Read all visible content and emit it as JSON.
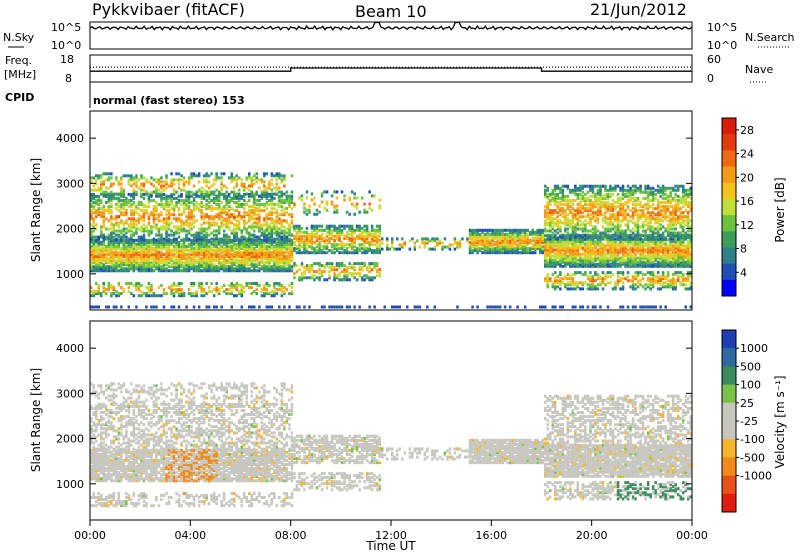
{
  "header": {
    "station": "Pykkvibaer (fitACF)",
    "beam": "Beam 10",
    "date": "21/Jun/2012"
  },
  "top_panels": {
    "nsky_label": "N.Sky",
    "nsky_ticks": [
      "10^5",
      "10^0"
    ],
    "nsearch_label": "N.Search",
    "nsearch_ticks": [
      "10^5",
      "10^0"
    ],
    "freq_label": "Freq.",
    "freq_unit": "[MHz]",
    "freq_ticks": [
      "18",
      "8"
    ],
    "nave_label": "Nave",
    "nave_ticks": [
      "60",
      "0"
    ],
    "cpid_label": "CPID",
    "cpid_text": "normal (fast stereo) 153"
  },
  "colors": {
    "power": [
      "#0000ff",
      "#1f4fb4",
      "#2e7f88",
      "#3c9e5a",
      "#6cc23c",
      "#bfe03a",
      "#f7c21e",
      "#f39a17",
      "#ee6a12",
      "#e33a0e",
      "#d81b0b"
    ],
    "velocity": [
      "#1f3fb0",
      "#2e6aa0",
      "#3c8a5e",
      "#7ac24a",
      "#c7c7c0",
      "#c7c7c0",
      "#f5b52a",
      "#f18a1a",
      "#e6521a",
      "#e01c10"
    ]
  },
  "chart_data": [
    {
      "type": "line",
      "title": "N.Sky / N.Search",
      "ylabel": "N.Sky",
      "y2label": "N.Search",
      "yticks": [
        "10^0",
        "10^5"
      ],
      "note": "noise levels remain near top of axis with spikes near 11:30 and 14:45 UT",
      "series": [
        {
          "name": "N.Sky",
          "x": [
            "00:00",
            "11:20",
            "11:35",
            "14:35",
            "14:50",
            "24:00"
          ],
          "values": [
            0.8,
            0.8,
            1.0,
            0.8,
            1.0,
            0.8
          ]
        }
      ]
    },
    {
      "type": "line",
      "title": "Freq / Nave",
      "ylabel": "Freq. [MHz]",
      "y2label": "Nave",
      "ylim": [
        8,
        18
      ],
      "y2lim": [
        0,
        60
      ],
      "series": [
        {
          "name": "Freq. [MHz]",
          "x": [
            "00:00",
            "08:00",
            "08:00",
            "18:00",
            "18:00",
            "24:00"
          ],
          "values": [
            12,
            12,
            13.2,
            13.2,
            12,
            12
          ]
        },
        {
          "name": "Nave",
          "x": [
            "00:00",
            "24:00"
          ],
          "values": [
            33,
            33
          ]
        }
      ]
    },
    {
      "type": "heatmap",
      "title": "Power",
      "xlabel": "Time UT",
      "ylabel": "Slant Range [km]",
      "xticks": [
        "00:00",
        "04:00",
        "08:00",
        "12:00",
        "16:00",
        "20:00",
        "00:00"
      ],
      "yticks": [
        "1000",
        "2000",
        "3000",
        "4000"
      ],
      "ylim": [
        200,
        4600
      ],
      "colorbar_label": "Power [dB]",
      "colorbar_ticks": [
        "4",
        "8",
        "12",
        "16",
        "20",
        "24",
        "28"
      ],
      "colorbar_range": [
        0,
        30
      ]
    },
    {
      "type": "heatmap",
      "title": "Velocity",
      "xlabel": "Time UT",
      "ylabel": "Slant Range [km]",
      "xticks": [
        "00:00",
        "04:00",
        "08:00",
        "12:00",
        "16:00",
        "20:00",
        "00:00"
      ],
      "yticks": [
        "1000",
        "2000",
        "3000",
        "4000"
      ],
      "ylim": [
        200,
        4600
      ],
      "colorbar_label": "Velocity [m s⁻¹]",
      "colorbar_ticks": [
        "1000",
        "500",
        "100",
        "25",
        "-25",
        "-100",
        "-500",
        "-1000"
      ]
    }
  ],
  "xlabel": "Time UT"
}
